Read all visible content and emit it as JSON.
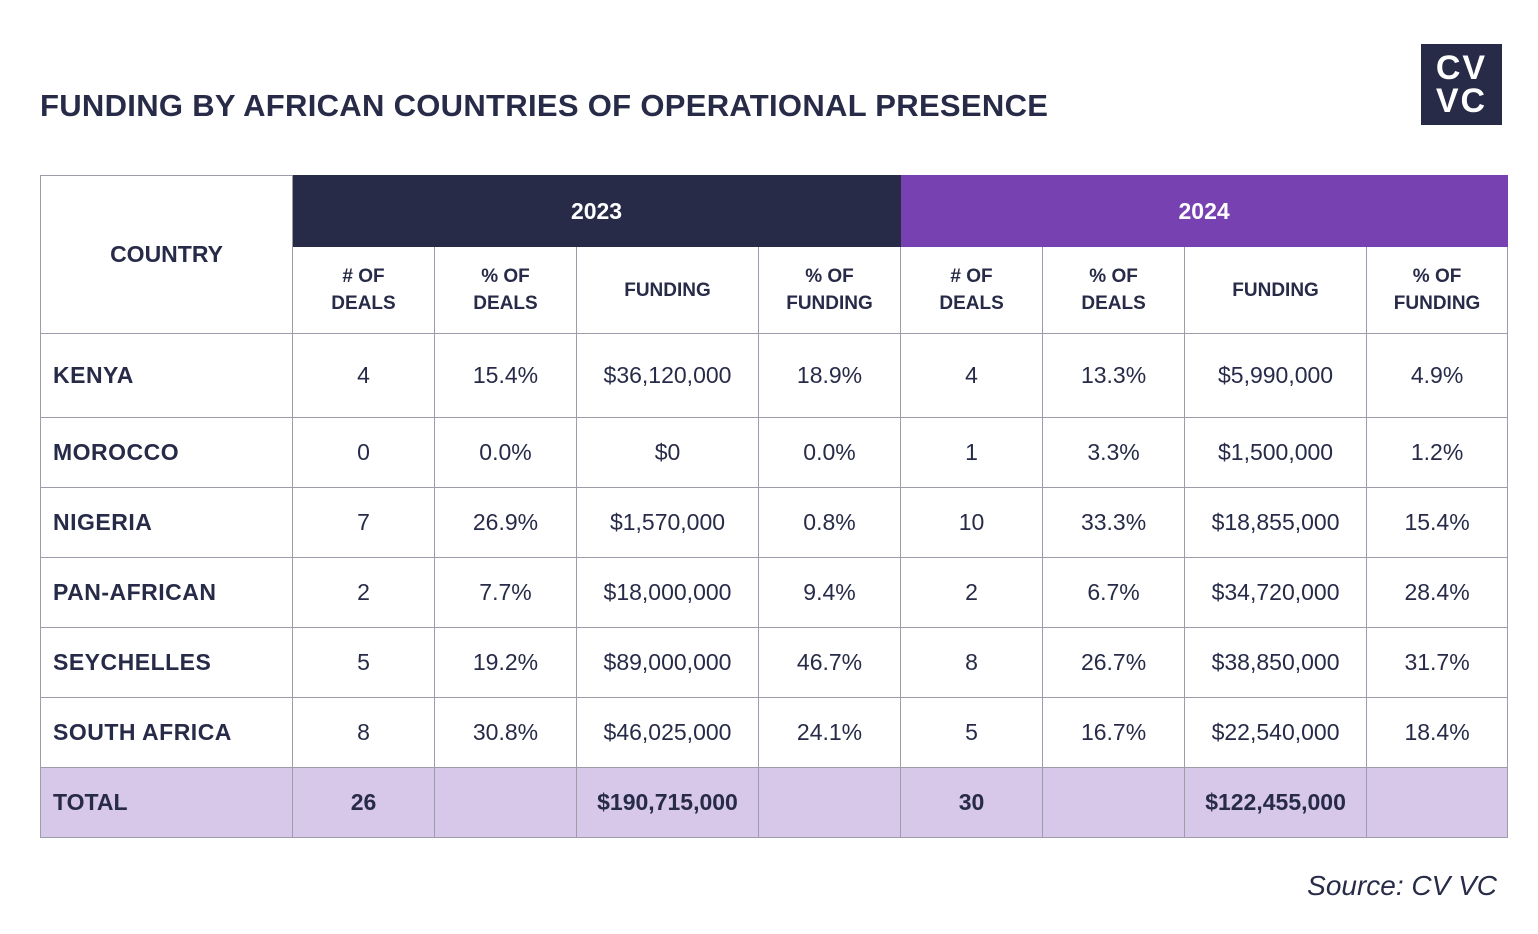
{
  "title": "FUNDING BY AFRICAN COUNTRIES OF OPERATIONAL PRESENCE",
  "logo": {
    "line1": "CV",
    "line2": "VC"
  },
  "colors": {
    "navy": "#272b48",
    "purple": "#7841b2",
    "lavender": "#d7c7e8",
    "border": "#9c9cab"
  },
  "table": {
    "country_header": "COUNTRY",
    "years": [
      "2023",
      "2024"
    ],
    "subheaders": [
      {
        "line1": "# OF",
        "line2": "DEALS"
      },
      {
        "line1": "% OF",
        "line2": "DEALS"
      },
      {
        "line1": "FUNDING",
        "line2": ""
      },
      {
        "line1": "% OF",
        "line2": "FUNDING"
      }
    ],
    "rows": [
      {
        "country": "KENYA",
        "y2023": [
          "4",
          "15.4%",
          "$36,120,000",
          "18.9%"
        ],
        "y2024": [
          "4",
          "13.3%",
          "$5,990,000",
          "4.9%"
        ]
      },
      {
        "country": "MOROCCO",
        "y2023": [
          "0",
          "0.0%",
          "$0",
          "0.0%"
        ],
        "y2024": [
          "1",
          "3.3%",
          "$1,500,000",
          "1.2%"
        ]
      },
      {
        "country": "NIGERIA",
        "y2023": [
          "7",
          "26.9%",
          "$1,570,000",
          "0.8%"
        ],
        "y2024": [
          "10",
          "33.3%",
          "$18,855,000",
          "15.4%"
        ]
      },
      {
        "country": "PAN-AFRICAN",
        "y2023": [
          "2",
          "7.7%",
          "$18,000,000",
          "9.4%"
        ],
        "y2024": [
          "2",
          "6.7%",
          "$34,720,000",
          "28.4%"
        ]
      },
      {
        "country": "SEYCHELLES",
        "y2023": [
          "5",
          "19.2%",
          "$89,000,000",
          "46.7%"
        ],
        "y2024": [
          "8",
          "26.7%",
          "$38,850,000",
          "31.7%"
        ]
      },
      {
        "country": "SOUTH AFRICA",
        "y2023": [
          "8",
          "30.8%",
          "$46,025,000",
          "24.1%"
        ],
        "y2024": [
          "5",
          "16.7%",
          "$22,540,000",
          "18.4%"
        ]
      }
    ],
    "total": {
      "label": "TOTAL",
      "y2023": [
        "26",
        "",
        "$190,715,000",
        ""
      ],
      "y2024": [
        "30",
        "",
        "$122,455,000",
        ""
      ]
    }
  },
  "source": "Source: CV VC"
}
